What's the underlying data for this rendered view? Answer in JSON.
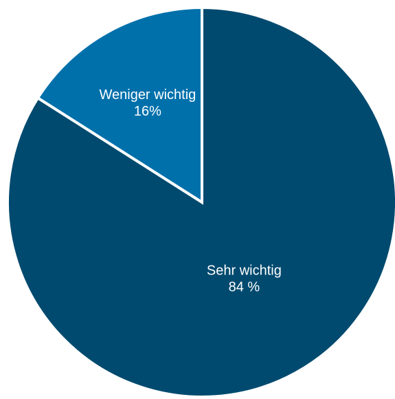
{
  "chart_data": {
    "type": "pie",
    "title": "",
    "slices": [
      {
        "label": "Sehr wichtig",
        "value": 84,
        "value_label": "84 %",
        "color": "#004a6f"
      },
      {
        "label": "Weniger wichtig",
        "value": 16,
        "value_label": "16%",
        "color": "#0070ab"
      }
    ],
    "start_angle_deg": 0,
    "direction": "clockwise",
    "slice_border_color": "#ffffff",
    "legend": "none"
  }
}
